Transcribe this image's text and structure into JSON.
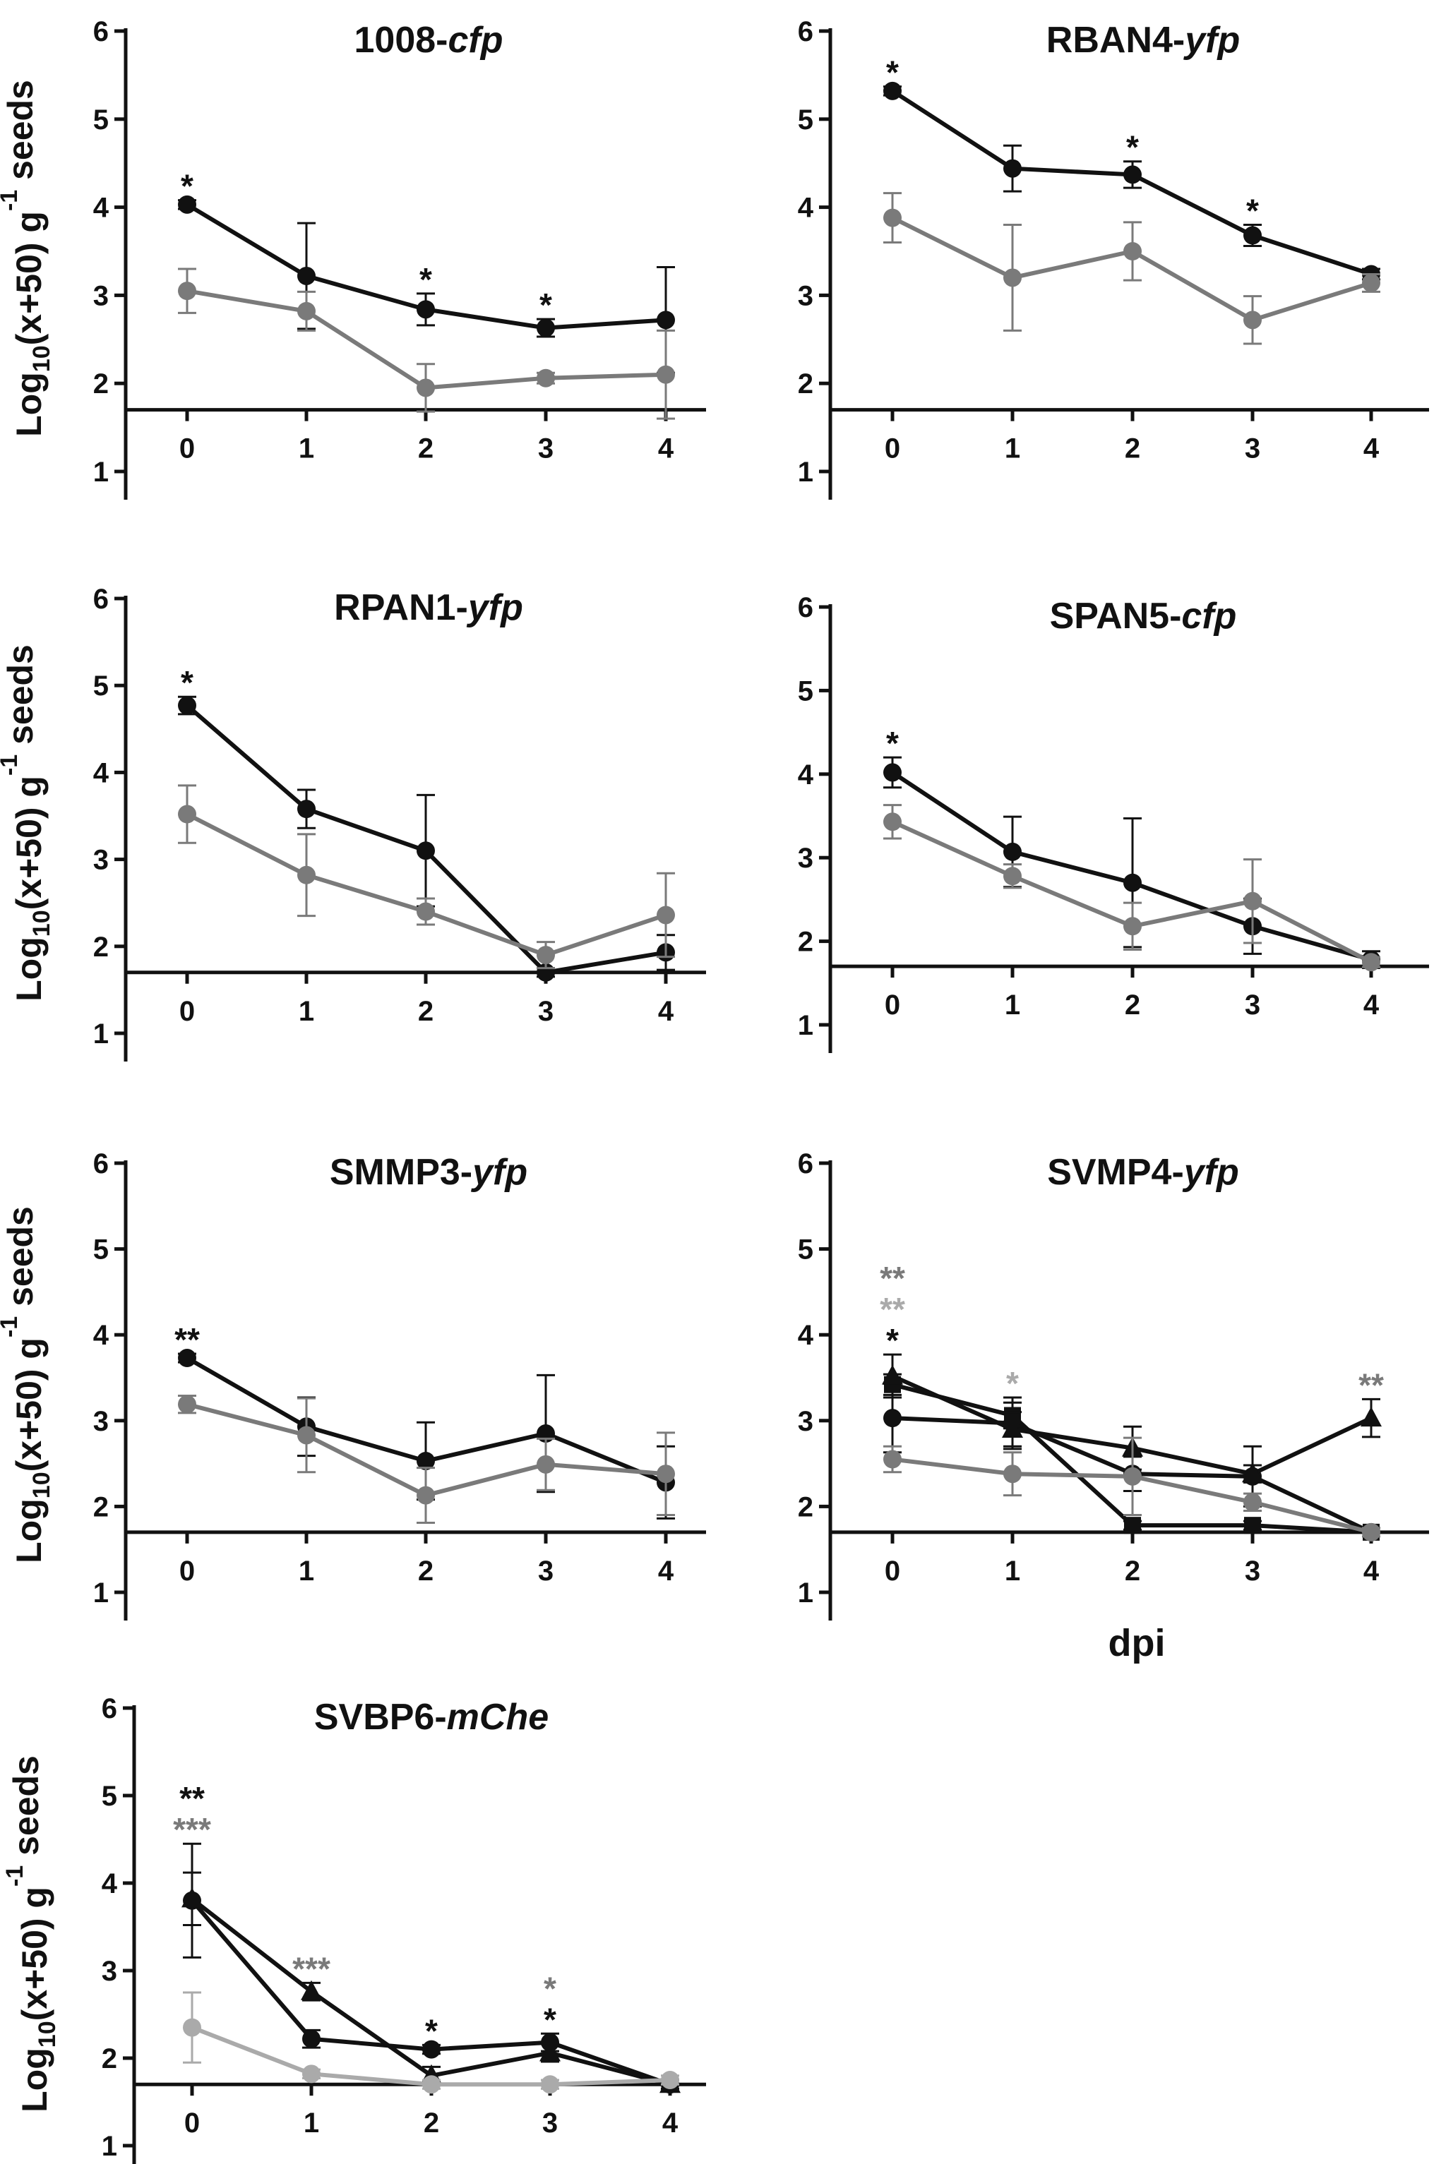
{
  "colors": {
    "series1": "#111111",
    "series2": "#7a7a7a",
    "series3": "#aaaaaa",
    "axis": "#111111"
  },
  "shared_x_label": "dpi",
  "chart_data": [
    {
      "type": "line",
      "title_main": "1008-",
      "title_italic": "cfp",
      "ylabel_main": "Log",
      "ylabel_sub": "10",
      "ylabel_mid": "(x+50) g",
      "ylabel_sup": "-1",
      "ylabel_end": " seeds",
      "x": [
        0,
        1,
        2,
        3,
        4
      ],
      "x_ticks": [
        "0",
        "1",
        "2",
        "3",
        "4"
      ],
      "y_ticks": [
        "1",
        "2",
        "3",
        "4",
        "5",
        "6"
      ],
      "ylim": [
        1,
        6
      ],
      "detection_limit": 1.7,
      "series": [
        {
          "values": [
            4.03,
            3.22,
            2.84,
            2.63,
            2.72
          ],
          "err": [
            0.05,
            0.6,
            0.18,
            0.1,
            0.6
          ],
          "marker": "circle",
          "color": "#111111"
        },
        {
          "values": [
            3.05,
            2.82,
            1.95,
            2.06,
            2.1
          ],
          "err": [
            0.25,
            0.22,
            0.27,
            0.06,
            0.5
          ],
          "marker": "circle",
          "color": "#7a7a7a"
        }
      ],
      "annotations": [
        {
          "x": 0,
          "text": "*",
          "color": "#111111",
          "row": 0
        },
        {
          "x": 2,
          "text": "*",
          "color": "#111111",
          "row": 0
        },
        {
          "x": 3,
          "text": "*",
          "color": "#111111",
          "row": 0
        }
      ]
    },
    {
      "type": "line",
      "title_main": "RBAN4-",
      "title_italic": "yfp",
      "ylabel_main": "",
      "ylabel_sub": "",
      "ylabel_mid": "",
      "ylabel_sup": "",
      "ylabel_end": "",
      "x": [
        0,
        1,
        2,
        3,
        4
      ],
      "x_ticks": [
        "0",
        "1",
        "2",
        "3",
        "4"
      ],
      "y_ticks": [
        "1",
        "2",
        "3",
        "4",
        "5",
        "6"
      ],
      "ylim": [
        1,
        6
      ],
      "detection_limit": 1.7,
      "series": [
        {
          "values": [
            5.32,
            4.44,
            4.37,
            3.68,
            3.24
          ],
          "err": [
            0.05,
            0.26,
            0.15,
            0.12,
            0.06
          ],
          "marker": "circle",
          "color": "#111111"
        },
        {
          "values": [
            3.88,
            3.2,
            3.5,
            2.72,
            3.14
          ],
          "err": [
            0.28,
            0.6,
            0.33,
            0.27,
            0.1
          ],
          "marker": "circle",
          "color": "#7a7a7a"
        }
      ],
      "annotations": [
        {
          "x": 0,
          "text": "*",
          "color": "#111111",
          "row": 0
        },
        {
          "x": 2,
          "text": "*",
          "color": "#111111",
          "row": 0
        },
        {
          "x": 3,
          "text": "*",
          "color": "#111111",
          "row": 0
        }
      ]
    },
    {
      "type": "line",
      "title_main": "RPAN1-",
      "title_italic": "yfp",
      "ylabel_main": "Log",
      "ylabel_sub": "10",
      "ylabel_mid": "(x+50) g",
      "ylabel_sup": "-1",
      "ylabel_end": " seeds",
      "x": [
        0,
        1,
        2,
        3,
        4
      ],
      "x_ticks": [
        "0",
        "1",
        "2",
        "3",
        "4"
      ],
      "y_ticks": [
        "1",
        "2",
        "3",
        "4",
        "5",
        "6"
      ],
      "ylim": [
        1,
        6
      ],
      "detection_limit": 1.7,
      "series": [
        {
          "values": [
            4.77,
            3.58,
            3.1,
            1.7,
            1.93
          ],
          "err": [
            0.1,
            0.22,
            0.64,
            0.05,
            0.2
          ],
          "marker": "circle",
          "color": "#111111"
        },
        {
          "values": [
            3.52,
            2.82,
            2.4,
            1.9,
            2.36
          ],
          "err": [
            0.33,
            0.47,
            0.15,
            0.15,
            0.48
          ],
          "marker": "circle",
          "color": "#7a7a7a"
        }
      ],
      "annotations": [
        {
          "x": 0,
          "text": "*",
          "color": "#111111",
          "row": 0
        }
      ]
    },
    {
      "type": "line",
      "title_main": "SPAN5-",
      "title_italic": "cfp",
      "ylabel_main": "",
      "ylabel_sub": "",
      "ylabel_mid": "",
      "ylabel_sup": "",
      "ylabel_end": "",
      "x": [
        0,
        1,
        2,
        3,
        4
      ],
      "x_ticks": [
        "0",
        "1",
        "2",
        "3",
        "4"
      ],
      "y_ticks": [
        "1",
        "2",
        "3",
        "4",
        "5",
        "6"
      ],
      "ylim": [
        1,
        6
      ],
      "detection_limit": 1.7,
      "series": [
        {
          "values": [
            4.02,
            3.07,
            2.7,
            2.18,
            1.78
          ],
          "err": [
            0.18,
            0.42,
            0.77,
            0.33,
            0.1
          ],
          "marker": "circle",
          "color": "#111111"
        },
        {
          "values": [
            3.43,
            2.78,
            2.18,
            2.48,
            1.75
          ],
          "err": [
            0.2,
            0.14,
            0.28,
            0.5,
            0.06
          ],
          "marker": "circle",
          "color": "#7a7a7a"
        }
      ],
      "annotations": [
        {
          "x": 0,
          "text": "*",
          "color": "#111111",
          "row": 0
        }
      ]
    },
    {
      "type": "line",
      "title_main": "SMMP3-",
      "title_italic": "yfp",
      "ylabel_main": "Log",
      "ylabel_sub": "10",
      "ylabel_mid": "(x+50) g",
      "ylabel_sup": "-1",
      "ylabel_end": " seeds",
      "x": [
        0,
        1,
        2,
        3,
        4
      ],
      "x_ticks": [
        "0",
        "1",
        "2",
        "3",
        "4"
      ],
      "y_ticks": [
        "1",
        "2",
        "3",
        "4",
        "5",
        "6"
      ],
      "ylim": [
        1,
        6
      ],
      "detection_limit": 1.7,
      "series": [
        {
          "values": [
            3.73,
            2.93,
            2.53,
            2.85,
            2.28
          ],
          "err": [
            0.05,
            0.34,
            0.45,
            0.68,
            0.42
          ],
          "marker": "circle",
          "color": "#111111"
        },
        {
          "values": [
            3.19,
            2.83,
            2.13,
            2.49,
            2.38
          ],
          "err": [
            0.1,
            0.43,
            0.32,
            0.3,
            0.48
          ],
          "marker": "circle",
          "color": "#7a7a7a"
        }
      ],
      "annotations": [
        {
          "x": 0,
          "text": "**",
          "color": "#111111",
          "row": 0
        }
      ]
    },
    {
      "type": "line",
      "title_main": "SVMP4-",
      "title_italic": "yfp",
      "ylabel_main": "",
      "ylabel_sub": "",
      "ylabel_mid": "",
      "ylabel_sup": "",
      "ylabel_end": "",
      "x": [
        0,
        1,
        2,
        3,
        4
      ],
      "x_ticks": [
        "0",
        "1",
        "2",
        "3",
        "4"
      ],
      "y_ticks": [
        "1",
        "2",
        "3",
        "4",
        "5",
        "6"
      ],
      "ylim": [
        1,
        6
      ],
      "detection_limit": 1.7,
      "series": [
        {
          "values": [
            3.03,
            2.97,
            2.38,
            2.35,
            1.7
          ],
          "err": [
            0.4,
            0.3,
            0.2,
            0.35,
            0.05
          ],
          "marker": "circle",
          "color": "#111111"
        },
        {
          "values": [
            3.42,
            3.06,
            1.78,
            1.78,
            1.7
          ],
          "err": [
            0.12,
            0.15,
            0.05,
            0.05,
            0.05
          ],
          "marker": "square",
          "color": "#111111"
        },
        {
          "values": [
            3.52,
            2.9,
            2.68,
            2.38,
            3.03
          ],
          "err": [
            0.25,
            0.2,
            0.25,
            0.1,
            0.22
          ],
          "marker": "triangle",
          "color": "#111111"
        },
        {
          "values": [
            2.55,
            2.38,
            2.35,
            2.05,
            1.7
          ],
          "err": [
            0.15,
            0.25,
            0.45,
            0.1,
            0.05
          ],
          "marker": "circle",
          "color": "#7a7a7a"
        }
      ],
      "annotations": [
        {
          "x": 0,
          "text": "**",
          "color": "#7a7a7a",
          "row": 2
        },
        {
          "x": 0,
          "text": "**",
          "color": "#aaaaaa",
          "row": 1
        },
        {
          "x": 0,
          "text": "*",
          "color": "#111111",
          "row": 0
        },
        {
          "x": 1,
          "text": "*",
          "color": "#aaaaaa",
          "row": 0
        },
        {
          "x": 4,
          "text": "**",
          "color": "#7a7a7a",
          "row": 0
        }
      ]
    },
    {
      "type": "line",
      "title_main": "SVBP6-",
      "title_italic": "mChe",
      "ylabel_main": "Log",
      "ylabel_sub": "10",
      "ylabel_mid": "(x+50) g",
      "ylabel_sup": "-1",
      "ylabel_end": " seeds",
      "x": [
        0,
        1,
        2,
        3,
        4
      ],
      "x_ticks": [
        "0",
        "1",
        "2",
        "3",
        "4"
      ],
      "y_ticks": [
        "1",
        "2",
        "3",
        "4",
        "5",
        "6"
      ],
      "ylim": [
        1,
        6
      ],
      "detection_limit": 1.7,
      "series": [
        {
          "values": [
            3.8,
            2.22,
            2.1,
            2.18,
            1.7
          ],
          "err": [
            0.65,
            0.1,
            0.05,
            0.1,
            0.05
          ],
          "marker": "circle",
          "color": "#111111"
        },
        {
          "values": [
            3.82,
            2.76,
            1.8,
            2.06,
            1.7
          ],
          "err": [
            0.3,
            0.1,
            0.1,
            0.1,
            0.05
          ],
          "marker": "triangle",
          "color": "#111111"
        },
        {
          "values": [
            2.35,
            1.82,
            1.7,
            1.7,
            1.75
          ],
          "err": [
            0.4,
            0.05,
            0.05,
            0.05,
            0.05
          ],
          "marker": "circle",
          "color": "#aaaaaa"
        }
      ],
      "annotations": [
        {
          "x": 0,
          "text": "**",
          "color": "#111111",
          "row": 1
        },
        {
          "x": 0,
          "text": "***",
          "color": "#7a7a7a",
          "row": 0
        },
        {
          "x": 1,
          "text": "***",
          "color": "#7a7a7a",
          "row": 0
        },
        {
          "x": 2,
          "text": "*",
          "color": "#111111",
          "row": 0
        },
        {
          "x": 3,
          "text": "*",
          "color": "#7a7a7a",
          "row": 1
        },
        {
          "x": 3,
          "text": "*",
          "color": "#111111",
          "row": 0
        }
      ]
    }
  ]
}
